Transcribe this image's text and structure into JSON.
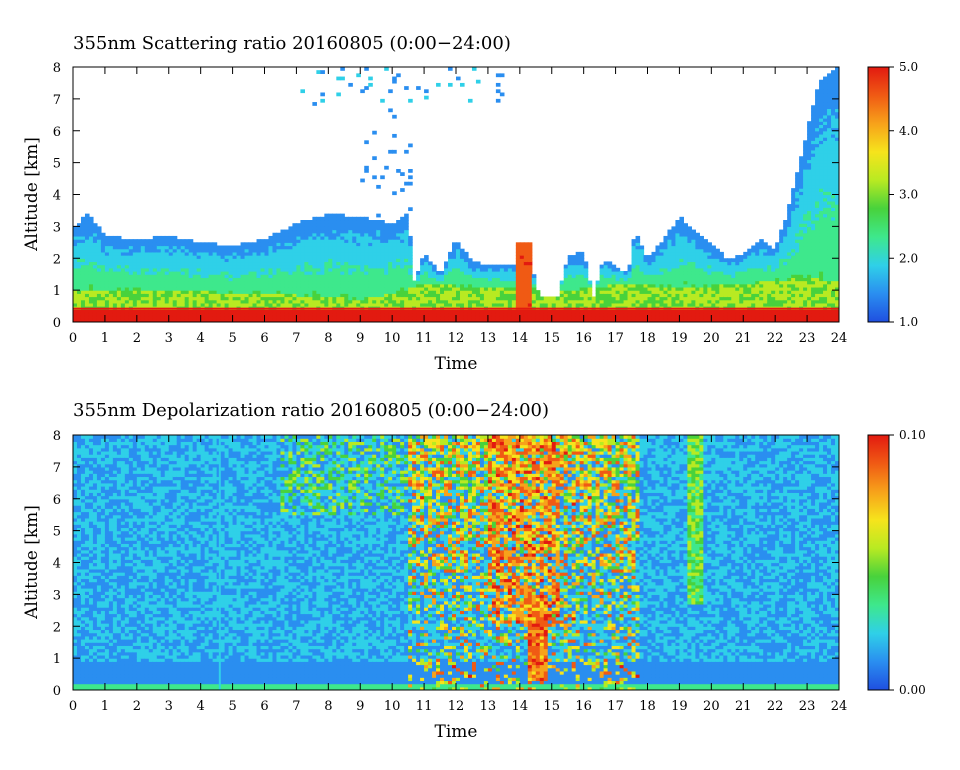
{
  "colorscale": [
    "#1f4fe0",
    "#2a8ef0",
    "#2fd0e8",
    "#3ee88c",
    "#48d23c",
    "#b8ea22",
    "#f6e41c",
    "#f7a21a",
    "#f05a14",
    "#e21a10"
  ],
  "chart_data": [
    {
      "type": "heatmap",
      "title": "355nm Scattering ratio  20160805 (0:00−24:00)",
      "xlabel": "Time",
      "ylabel": "Altitude [km]",
      "xlim": [
        0,
        24
      ],
      "ylim": [
        0,
        8
      ],
      "x_ticks": [
        "0",
        "1",
        "2",
        "3",
        "4",
        "5",
        "6",
        "7",
        "8",
        "9",
        "10",
        "11",
        "12",
        "13",
        "14",
        "15",
        "16",
        "17",
        "18",
        "19",
        "20",
        "21",
        "22",
        "23",
        "24"
      ],
      "y_ticks": [
        "0",
        "1",
        "2",
        "3",
        "4",
        "5",
        "6",
        "7",
        "8"
      ],
      "colorbar": {
        "min": 1.0,
        "max": 5.0,
        "ticks": [
          "1.0",
          "2.0",
          "3.0",
          "4.0",
          "5.0"
        ]
      },
      "signal_top_km": [
        [
          0,
          3.0
        ],
        [
          0.5,
          3.4
        ],
        [
          1,
          2.7
        ],
        [
          2,
          2.6
        ],
        [
          3,
          2.7
        ],
        [
          4,
          2.5
        ],
        [
          5,
          2.4
        ],
        [
          6,
          2.6
        ],
        [
          7,
          3.1
        ],
        [
          8,
          3.4
        ],
        [
          9,
          3.3
        ],
        [
          10,
          3.1
        ],
        [
          10.5,
          3.4
        ],
        [
          10.7,
          1.2
        ],
        [
          11,
          2.2
        ],
        [
          11.5,
          1.5
        ],
        [
          12,
          2.6
        ],
        [
          12.5,
          1.9
        ],
        [
          13,
          1.8
        ],
        [
          13.9,
          1.8
        ],
        [
          14.2,
          2.5
        ],
        [
          14.6,
          0.8
        ],
        [
          15.2,
          0.8
        ],
        [
          15.5,
          2.1
        ],
        [
          16,
          2.2
        ],
        [
          16.3,
          0.7
        ],
        [
          16.6,
          2.0
        ],
        [
          17.4,
          1.5
        ],
        [
          17.6,
          2.9
        ],
        [
          18,
          2.0
        ],
        [
          18.5,
          2.6
        ],
        [
          19,
          3.3
        ],
        [
          19.5,
          2.9
        ],
        [
          20,
          2.4
        ],
        [
          20.5,
          2.0
        ],
        [
          21,
          2.1
        ],
        [
          21.5,
          2.6
        ],
        [
          22,
          2.3
        ],
        [
          22.4,
          3.5
        ],
        [
          23,
          6.0
        ],
        [
          23.4,
          7.6
        ],
        [
          24,
          8.0
        ]
      ],
      "boundary_layer_km": [
        [
          0,
          1.0
        ],
        [
          3,
          1.0
        ],
        [
          6,
          0.9
        ],
        [
          8,
          0.8
        ],
        [
          9,
          0.7
        ],
        [
          10,
          0.9
        ],
        [
          11,
          1.2
        ],
        [
          13,
          1.1
        ],
        [
          14,
          1.1
        ],
        [
          15.8,
          1.0
        ],
        [
          17,
          1.2
        ],
        [
          19,
          1.1
        ],
        [
          21,
          1.2
        ],
        [
          22,
          1.3
        ],
        [
          23,
          1.4
        ],
        [
          24,
          1.3
        ]
      ],
      "upper_cloud_span_h": [
        7,
        13.5
      ]
    },
    {
      "type": "heatmap",
      "title": "355nm Depolarization ratio  20160805 (0:00−24:00)",
      "xlabel": "Time",
      "ylabel": "Altitude [km]",
      "xlim": [
        0,
        24
      ],
      "ylim": [
        0,
        8
      ],
      "x_ticks": [
        "0",
        "1",
        "2",
        "3",
        "4",
        "5",
        "6",
        "7",
        "8",
        "9",
        "10",
        "11",
        "12",
        "13",
        "14",
        "15",
        "16",
        "17",
        "18",
        "19",
        "20",
        "21",
        "22",
        "23",
        "24"
      ],
      "y_ticks": [
        "0",
        "1",
        "2",
        "3",
        "4",
        "5",
        "6",
        "7",
        "8"
      ],
      "colorbar": {
        "min": 0.0,
        "max": 0.1,
        "ticks": [
          "0.00",
          "0.10"
        ]
      },
      "high_depol_region_h": [
        10.5,
        17.8
      ],
      "dust_column_h": [
        14.2,
        14.9
      ],
      "vertical_line_h": 4.6,
      "plume_h": [
        19.3,
        19.7
      ]
    }
  ]
}
